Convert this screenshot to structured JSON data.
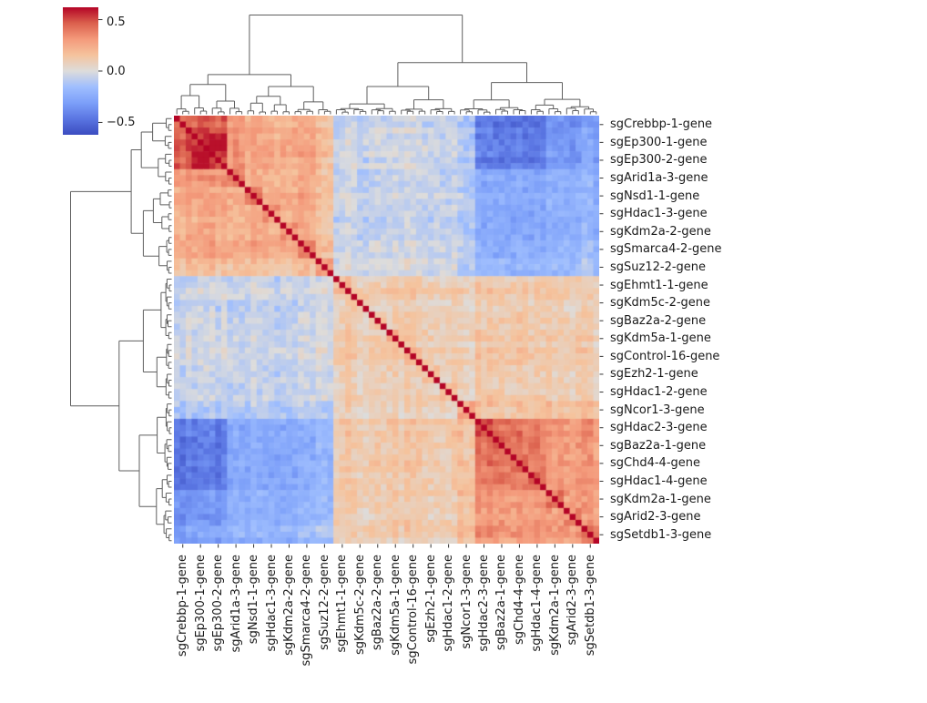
{
  "chart_data": {
    "type": "heatmap",
    "title": "",
    "description": "Hierarchically clustered (clustermap) pairwise correlation matrix of sgRNA gene signatures, with dendrograms on the top and left, a coolwarm colorbar at top-left, 72x72 cells (3 replicate guides per labeled group), and a dark red unit diagonal.",
    "colormap": "coolwarm",
    "vmin": -0.62,
    "vmax": 0.62,
    "diagonal_value": 1.0,
    "n_rows": 72,
    "n_cols": 72,
    "replicates_per_label": 3,
    "grid": false,
    "legend_position": "none",
    "colorbar": {
      "position": "top-left",
      "ticks": [
        {
          "value": 0.5,
          "label": "0.5"
        },
        {
          "value": 0.0,
          "label": "0.0"
        },
        {
          "value": -0.5,
          "label": "−0.5"
        }
      ]
    },
    "colormap_stops": [
      [
        0.0,
        "#3b4cc0"
      ],
      [
        0.125,
        "#5a75e2"
      ],
      [
        0.25,
        "#7c9ff9"
      ],
      [
        0.375,
        "#9fbefe"
      ],
      [
        0.5,
        "#dddcdb"
      ],
      [
        0.625,
        "#f5c39d"
      ],
      [
        0.75,
        "#f49a7b"
      ],
      [
        0.875,
        "#db604d"
      ],
      [
        1.0,
        "#b40426"
      ]
    ],
    "row_labels": [
      "sgCrebbp-1-gene",
      "sgEp300-1-gene",
      "sgEp300-2-gene",
      "sgArid1a-3-gene",
      "sgNsd1-1-gene",
      "sgHdac1-3-gene",
      "sgKdm2a-2-gene",
      "sgSmarca4-2-gene",
      "sgSuz12-2-gene",
      "sgEhmt1-1-gene",
      "sgKdm5c-2-gene",
      "sgBaz2a-2-gene",
      "sgKdm5a-1-gene",
      "sgControl-16-gene",
      "sgEzh2-1-gene",
      "sgHdac1-2-gene",
      "sgNcor1-3-gene",
      "sgHdac2-3-gene",
      "sgBaz2a-1-gene",
      "sgChd4-4-gene",
      "sgHdac1-4-gene",
      "sgKdm2a-1-gene",
      "sgArid2-3-gene",
      "sgSetdb1-3-gene"
    ],
    "col_labels": [
      "sgCrebbp-1-gene",
      "sgEp300-1-gene",
      "sgEp300-2-gene",
      "sgArid1a-3-gene",
      "sgNsd1-1-gene",
      "sgHdac1-3-gene",
      "sgKdm2a-2-gene",
      "sgSmarca4-2-gene",
      "sgSuz12-2-gene",
      "sgEhmt1-1-gene",
      "sgKdm5c-2-gene",
      "sgBaz2a-2-gene",
      "sgKdm5a-1-gene",
      "sgControl-16-gene",
      "sgEzh2-1-gene",
      "sgHdac1-2-gene",
      "sgNcor1-3-gene",
      "sgHdac2-3-gene",
      "sgBaz2a-1-gene",
      "sgChd4-4-gene",
      "sgHdac1-4-gene",
      "sgKdm2a-1-gene",
      "sgArid2-3-gene",
      "sgSetdb1-3-gene"
    ],
    "group_matrix": [
      [
        0.45,
        0.45,
        0.45,
        0.32,
        0.25,
        0.25,
        0.25,
        0.25,
        0.18,
        -0.05,
        -0.05,
        -0.05,
        -0.05,
        -0.05,
        -0.05,
        -0.05,
        -0.12,
        -0.45,
        -0.45,
        -0.45,
        -0.45,
        -0.35,
        -0.35,
        -0.3
      ],
      [
        0.45,
        0.5,
        0.58,
        0.32,
        0.25,
        0.25,
        0.25,
        0.25,
        0.18,
        -0.05,
        -0.05,
        -0.05,
        -0.05,
        -0.05,
        -0.05,
        -0.05,
        -0.12,
        -0.45,
        -0.45,
        -0.45,
        -0.45,
        -0.35,
        -0.35,
        -0.3
      ],
      [
        0.45,
        0.58,
        0.5,
        0.32,
        0.25,
        0.25,
        0.25,
        0.25,
        0.18,
        -0.05,
        -0.05,
        -0.05,
        -0.05,
        -0.05,
        -0.05,
        -0.05,
        -0.12,
        -0.45,
        -0.45,
        -0.45,
        -0.45,
        -0.35,
        -0.35,
        -0.3
      ],
      [
        0.32,
        0.32,
        0.32,
        0.4,
        0.25,
        0.25,
        0.25,
        0.25,
        0.18,
        -0.05,
        -0.05,
        -0.05,
        -0.05,
        -0.05,
        -0.05,
        -0.05,
        -0.1,
        -0.25,
        -0.25,
        -0.25,
        -0.25,
        -0.22,
        -0.22,
        -0.2
      ],
      [
        0.25,
        0.25,
        0.25,
        0.25,
        0.35,
        0.25,
        0.25,
        0.25,
        0.18,
        -0.05,
        -0.05,
        -0.05,
        -0.05,
        -0.05,
        -0.05,
        -0.05,
        -0.1,
        -0.25,
        -0.25,
        -0.25,
        -0.25,
        -0.22,
        -0.22,
        -0.2
      ],
      [
        0.25,
        0.25,
        0.25,
        0.25,
        0.25,
        0.35,
        0.25,
        0.25,
        0.18,
        -0.05,
        -0.05,
        -0.05,
        -0.05,
        -0.05,
        -0.05,
        -0.05,
        -0.1,
        -0.25,
        -0.25,
        -0.25,
        -0.25,
        -0.22,
        -0.22,
        -0.2
      ],
      [
        0.25,
        0.25,
        0.25,
        0.25,
        0.25,
        0.25,
        0.35,
        0.25,
        0.18,
        -0.05,
        -0.05,
        -0.05,
        -0.05,
        -0.05,
        -0.05,
        -0.05,
        -0.1,
        -0.25,
        -0.25,
        -0.25,
        -0.25,
        -0.22,
        -0.22,
        -0.2
      ],
      [
        0.25,
        0.25,
        0.25,
        0.25,
        0.25,
        0.25,
        0.25,
        0.35,
        0.18,
        -0.05,
        -0.05,
        -0.05,
        -0.05,
        -0.05,
        -0.05,
        -0.05,
        -0.1,
        -0.25,
        -0.25,
        -0.25,
        -0.25,
        -0.22,
        -0.22,
        -0.2
      ],
      [
        0.18,
        0.18,
        0.18,
        0.18,
        0.18,
        0.18,
        0.18,
        0.18,
        0.3,
        0,
        0,
        0,
        0,
        0,
        0,
        0,
        -0.08,
        -0.18,
        -0.18,
        -0.18,
        -0.18,
        -0.15,
        -0.15,
        -0.12
      ],
      [
        -0.05,
        -0.05,
        -0.05,
        -0.05,
        -0.05,
        -0.05,
        -0.05,
        -0.05,
        0,
        0.2,
        0.1,
        0.1,
        0.1,
        0.1,
        0.1,
        0.1,
        0.08,
        0.12,
        0.12,
        0.12,
        0.12,
        0.1,
        0.1,
        0.1
      ],
      [
        -0.05,
        -0.05,
        -0.05,
        -0.05,
        -0.05,
        -0.05,
        -0.05,
        -0.05,
        0,
        0.1,
        0.18,
        0.1,
        0.1,
        0.1,
        0.1,
        0.1,
        0.08,
        0.12,
        0.12,
        0.12,
        0.12,
        0.1,
        0.1,
        0.1
      ],
      [
        -0.05,
        -0.05,
        -0.05,
        -0.05,
        -0.05,
        -0.05,
        -0.05,
        -0.05,
        0,
        0.1,
        0.1,
        0.18,
        0.1,
        0.1,
        0.1,
        0.1,
        0.08,
        0.12,
        0.12,
        0.12,
        0.12,
        0.1,
        0.1,
        0.1
      ],
      [
        -0.05,
        -0.05,
        -0.05,
        -0.05,
        -0.05,
        -0.05,
        -0.05,
        -0.05,
        0,
        0.1,
        0.1,
        0.1,
        0.2,
        0.1,
        0.1,
        0.1,
        0.08,
        0.12,
        0.12,
        0.12,
        0.12,
        0.1,
        0.1,
        0.1
      ],
      [
        -0.05,
        -0.05,
        -0.05,
        -0.05,
        -0.05,
        -0.05,
        -0.05,
        -0.05,
        0,
        0.1,
        0.1,
        0.1,
        0.1,
        0.15,
        0.1,
        0.1,
        0.08,
        0.12,
        0.12,
        0.12,
        0.12,
        0.1,
        0.1,
        0.1
      ],
      [
        -0.05,
        -0.05,
        -0.05,
        -0.05,
        -0.05,
        -0.05,
        -0.05,
        -0.05,
        0,
        0.1,
        0.1,
        0.1,
        0.1,
        0.1,
        0.18,
        0.1,
        0.08,
        0.12,
        0.12,
        0.12,
        0.12,
        0.1,
        0.1,
        0.1
      ],
      [
        -0.05,
        -0.05,
        -0.05,
        -0.05,
        -0.05,
        -0.05,
        -0.05,
        -0.05,
        0,
        0.1,
        0.1,
        0.1,
        0.1,
        0.1,
        0.1,
        0.2,
        0.08,
        0.12,
        0.12,
        0.12,
        0.12,
        0.1,
        0.1,
        0.1
      ],
      [
        -0.12,
        -0.12,
        -0.12,
        -0.1,
        -0.1,
        -0.1,
        -0.1,
        -0.1,
        -0.08,
        0.08,
        0.08,
        0.08,
        0.08,
        0.08,
        0.08,
        0.08,
        0.25,
        0.15,
        0.15,
        0.15,
        0.15,
        0.15,
        0.15,
        0.15
      ],
      [
        -0.45,
        -0.45,
        -0.45,
        -0.25,
        -0.25,
        -0.25,
        -0.25,
        -0.25,
        -0.18,
        0.12,
        0.12,
        0.12,
        0.12,
        0.12,
        0.12,
        0.12,
        0.15,
        0.5,
        0.4,
        0.4,
        0.4,
        0.3,
        0.3,
        0.3
      ],
      [
        -0.45,
        -0.45,
        -0.45,
        -0.25,
        -0.25,
        -0.25,
        -0.25,
        -0.25,
        -0.18,
        0.12,
        0.12,
        0.12,
        0.12,
        0.12,
        0.12,
        0.12,
        0.15,
        0.4,
        0.45,
        0.4,
        0.4,
        0.3,
        0.3,
        0.3
      ],
      [
        -0.45,
        -0.45,
        -0.45,
        -0.25,
        -0.25,
        -0.25,
        -0.25,
        -0.25,
        -0.18,
        0.12,
        0.12,
        0.12,
        0.12,
        0.12,
        0.12,
        0.12,
        0.15,
        0.4,
        0.4,
        0.45,
        0.4,
        0.3,
        0.3,
        0.3
      ],
      [
        -0.45,
        -0.45,
        -0.45,
        -0.25,
        -0.25,
        -0.25,
        -0.25,
        -0.25,
        -0.18,
        0.12,
        0.12,
        0.12,
        0.12,
        0.12,
        0.12,
        0.12,
        0.15,
        0.4,
        0.4,
        0.4,
        0.45,
        0.3,
        0.3,
        0.3
      ],
      [
        -0.35,
        -0.35,
        -0.35,
        -0.22,
        -0.22,
        -0.22,
        -0.22,
        -0.22,
        -0.15,
        0.1,
        0.1,
        0.1,
        0.1,
        0.1,
        0.1,
        0.1,
        0.15,
        0.3,
        0.3,
        0.3,
        0.3,
        0.38,
        0.28,
        0.28
      ],
      [
        -0.35,
        -0.35,
        -0.35,
        -0.22,
        -0.22,
        -0.22,
        -0.22,
        -0.22,
        -0.15,
        0.1,
        0.1,
        0.1,
        0.1,
        0.1,
        0.1,
        0.1,
        0.15,
        0.3,
        0.3,
        0.3,
        0.3,
        0.28,
        0.38,
        0.28
      ],
      [
        -0.3,
        -0.3,
        -0.3,
        -0.2,
        -0.2,
        -0.2,
        -0.2,
        -0.2,
        -0.12,
        0.1,
        0.1,
        0.1,
        0.1,
        0.1,
        0.1,
        0.1,
        0.15,
        0.3,
        0.3,
        0.3,
        0.3,
        0.28,
        0.28,
        0.35
      ]
    ],
    "dendrograms": {
      "top": "root splits columns into left cluster (sgCrebbp-1..sgSuz12-2) vs right cluster; right cluster splits into middle (sgEhmt1-1..sgHdac1-2) and right (sgNcor1-3..sgSetdb1-3)",
      "left": "mirror of top dendrogram on rows",
      "line_color": "#5f5f5f"
    }
  }
}
